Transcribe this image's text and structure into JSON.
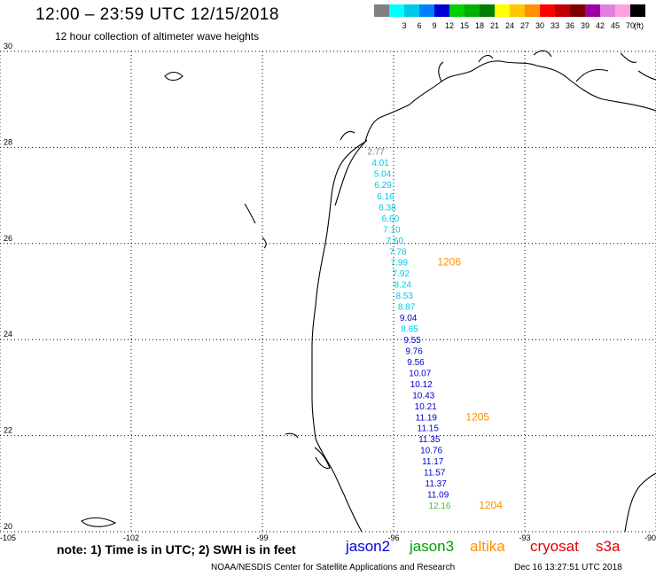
{
  "header": {
    "title": "12:00 – 23:59 UTC 12/15/2018",
    "subtitle": "12 hour collection of altimeter wave heights"
  },
  "colorbar": {
    "unit": "(ft)",
    "bins": [
      {
        "label": "",
        "color": "#808080"
      },
      {
        "label": "3",
        "color": "#00ffff"
      },
      {
        "label": "6",
        "color": "#00c8e8"
      },
      {
        "label": "9",
        "color": "#0080ff"
      },
      {
        "label": "12",
        "color": "#0000d0"
      },
      {
        "label": "15",
        "color": "#00d000"
      },
      {
        "label": "18",
        "color": "#00b000"
      },
      {
        "label": "21",
        "color": "#008000"
      },
      {
        "label": "24",
        "color": "#ffff00"
      },
      {
        "label": "27",
        "color": "#ffc800"
      },
      {
        "label": "30",
        "color": "#ff9000"
      },
      {
        "label": "33",
        "color": "#ff0000"
      },
      {
        "label": "36",
        "color": "#c00000"
      },
      {
        "label": "39",
        "color": "#800000"
      },
      {
        "label": "42",
        "color": "#a000a0"
      },
      {
        "label": "45",
        "color": "#e080e0"
      },
      {
        "label": "70",
        "color": "#ffa0e0"
      },
      {
        "label": "",
        "color": "#000000"
      }
    ]
  },
  "map": {
    "lon_range": [
      -105,
      -90
    ],
    "lat_range": [
      20,
      30
    ],
    "lon_ticks": [
      {
        "value": -105,
        "label": "-105"
      },
      {
        "value": -102,
        "label": "-102"
      },
      {
        "value": -99,
        "label": "-99"
      },
      {
        "value": -96,
        "label": "-96"
      },
      {
        "value": -93,
        "label": "-93"
      },
      {
        "value": -90,
        "label": "-90"
      }
    ],
    "lat_ticks": [
      {
        "value": 20,
        "label": "20"
      },
      {
        "value": 22,
        "label": "22"
      },
      {
        "value": 24,
        "label": "24"
      },
      {
        "value": 26,
        "label": "26"
      },
      {
        "value": 28,
        "label": "28"
      },
      {
        "value": 30,
        "label": "30"
      }
    ],
    "grid": "dotted"
  },
  "observations": [
    {
      "lon": -96.6,
      "lat": 27.85,
      "swh": "2.77",
      "color": "#808080"
    },
    {
      "lon": -96.5,
      "lat": 27.62,
      "swh": "4.01",
      "color": "#00c8e8"
    },
    {
      "lon": -96.45,
      "lat": 27.39,
      "swh": "5.04",
      "color": "#00c8e8"
    },
    {
      "lon": -96.44,
      "lat": 27.16,
      "swh": "6.29",
      "color": "#00c8e8"
    },
    {
      "lon": -96.38,
      "lat": 26.92,
      "swh": "6.16",
      "color": "#00c8e8"
    },
    {
      "lon": -96.34,
      "lat": 26.69,
      "swh": "6.38",
      "color": "#00c8e8"
    },
    {
      "lon": -96.27,
      "lat": 26.46,
      "swh": "6.60",
      "color": "#00c8e8"
    },
    {
      "lon": -96.24,
      "lat": 26.23,
      "swh": "7.10",
      "color": "#00c8e8"
    },
    {
      "lon": -96.17,
      "lat": 26.0,
      "swh": "7.60",
      "color": "#00c8e8"
    },
    {
      "lon": -96.1,
      "lat": 25.77,
      "swh": "7.78",
      "color": "#00c8e8"
    },
    {
      "lon": -96.07,
      "lat": 25.54,
      "swh": "7.99",
      "color": "#00c8e8"
    },
    {
      "lon": -96.03,
      "lat": 25.31,
      "swh": "7.92",
      "color": "#00c8e8"
    },
    {
      "lon": -95.99,
      "lat": 25.08,
      "swh": "8.24",
      "color": "#00c8e8"
    },
    {
      "lon": -95.95,
      "lat": 24.85,
      "swh": "8.53",
      "color": "#00c8e8"
    },
    {
      "lon": -95.9,
      "lat": 24.62,
      "swh": "8.87",
      "color": "#00c8e8"
    },
    {
      "lon": -95.86,
      "lat": 24.39,
      "swh": "9.04",
      "color": "#0000d0"
    },
    {
      "lon": -95.83,
      "lat": 24.16,
      "swh": "8.65",
      "color": "#00c8e8"
    },
    {
      "lon": -95.77,
      "lat": 23.93,
      "swh": "9.55",
      "color": "#0000d0"
    },
    {
      "lon": -95.73,
      "lat": 23.7,
      "swh": "9.76",
      "color": "#0000d0"
    },
    {
      "lon": -95.69,
      "lat": 23.47,
      "swh": "9.56",
      "color": "#0000d0"
    },
    {
      "lon": -95.65,
      "lat": 23.24,
      "swh": "10.07",
      "color": "#0000d0"
    },
    {
      "lon": -95.62,
      "lat": 23.01,
      "swh": "10.12",
      "color": "#0000d0"
    },
    {
      "lon": -95.57,
      "lat": 22.78,
      "swh": "10.43",
      "color": "#0000d0"
    },
    {
      "lon": -95.52,
      "lat": 22.55,
      "swh": "10.21",
      "color": "#0000d0"
    },
    {
      "lon": -95.5,
      "lat": 22.32,
      "swh": "11.19",
      "color": "#0000d0"
    },
    {
      "lon": -95.46,
      "lat": 22.09,
      "swh": "11.15",
      "color": "#0000d0"
    },
    {
      "lon": -95.43,
      "lat": 21.86,
      "swh": "11.35",
      "color": "#0000d0"
    },
    {
      "lon": -95.39,
      "lat": 21.63,
      "swh": "10.76",
      "color": "#0000d0"
    },
    {
      "lon": -95.35,
      "lat": 21.4,
      "swh": "11.17",
      "color": "#0000d0"
    },
    {
      "lon": -95.31,
      "lat": 21.17,
      "swh": "11.57",
      "color": "#0000d0"
    },
    {
      "lon": -95.28,
      "lat": 20.94,
      "swh": "11.37",
      "color": "#0000d0"
    },
    {
      "lon": -95.23,
      "lat": 20.71,
      "swh": "11.09",
      "color": "#0000d0"
    },
    {
      "lon": -95.2,
      "lat": 20.48,
      "swh": "12.16",
      "color": "#40c040"
    }
  ],
  "time_labels": [
    {
      "lon": -95.0,
      "lat": 25.54,
      "text": "1206",
      "color": "#ff9000"
    },
    {
      "lon": -94.35,
      "lat": 22.32,
      "text": "1205",
      "color": "#ff9000"
    },
    {
      "lon": -94.05,
      "lat": 20.48,
      "text": "1204",
      "color": "#ff9000"
    }
  ],
  "footer": {
    "note": "note:  1) Time is in UTC; 2) SWH is in feet",
    "satellites": [
      {
        "name": "jason2",
        "color": "#0000e0"
      },
      {
        "name": "jason3",
        "color": "#00a000"
      },
      {
        "name": "altika",
        "color": "#ff9000"
      },
      {
        "name": "cryosat",
        "color": "#e00000"
      },
      {
        "name": "s3a",
        "color": "#e00000"
      }
    ],
    "credit": "NOAA/NESDIS Center for Satellite Applications and Research",
    "stamp": "Dec 16 13:27:51 UTC 2018"
  }
}
